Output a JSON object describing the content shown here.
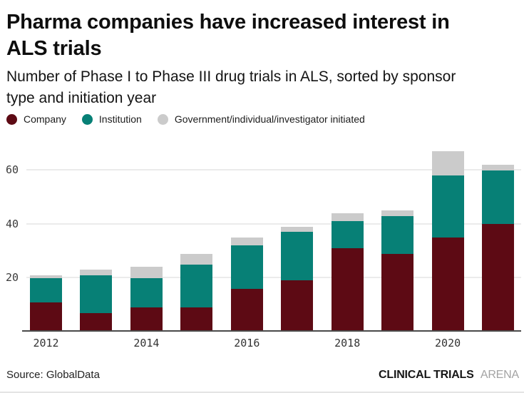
{
  "header": {
    "title": "Pharma companies have increased interest in ALS trials",
    "subtitle": "Number of Phase I to Phase III drug trials in ALS, sorted by sponsor type and initiation year"
  },
  "legend": {
    "items": [
      {
        "label": "Company",
        "color": "#5d0a14"
      },
      {
        "label": "Institution",
        "color": "#078076"
      },
      {
        "label": "Government/individual/investigator initiated",
        "color": "#cbcbcb"
      }
    ]
  },
  "chart_data": {
    "type": "bar",
    "stacked": true,
    "title": "Pharma companies have increased interest in ALS trials",
    "subtitle": "Number of Phase I to Phase III drug trials in ALS, sorted by sponsor type and initiation year",
    "categories": [
      "2012",
      "2013",
      "2014",
      "2015",
      "2016",
      "2017",
      "2018",
      "2019",
      "2020",
      "2021"
    ],
    "series": [
      {
        "name": "Company",
        "color": "#5d0a14",
        "values": [
          11,
          7,
          9,
          9,
          16,
          19,
          31,
          29,
          35,
          40
        ]
      },
      {
        "name": "Institution",
        "color": "#078076",
        "values": [
          9,
          14,
          11,
          16,
          16,
          18,
          10,
          14,
          23,
          20
        ]
      },
      {
        "name": "Government/individual/investigator initiated",
        "color": "#cbcbcb",
        "values": [
          1,
          2,
          4,
          4,
          3,
          2,
          3,
          2,
          9,
          2
        ]
      }
    ],
    "totals": [
      21,
      23,
      24,
      29,
      35,
      39,
      44,
      45,
      67,
      62
    ],
    "xlabel": "",
    "ylabel": "",
    "yticks": [
      20,
      40,
      60
    ],
    "xtick_labels": [
      "2012",
      "2014",
      "2016",
      "2018",
      "2020"
    ],
    "ylim": [
      0,
      68
    ],
    "grid": "horizontal",
    "legend_position": "top",
    "colors": {
      "grid": "#ebebeb",
      "axis": "#4a4a4a",
      "tick_text": "#3b3b3b"
    }
  },
  "footer": {
    "source": "Source: GlobalData",
    "brand_bold": "CLINICAL TRIALS",
    "brand_light": "ARENA"
  }
}
